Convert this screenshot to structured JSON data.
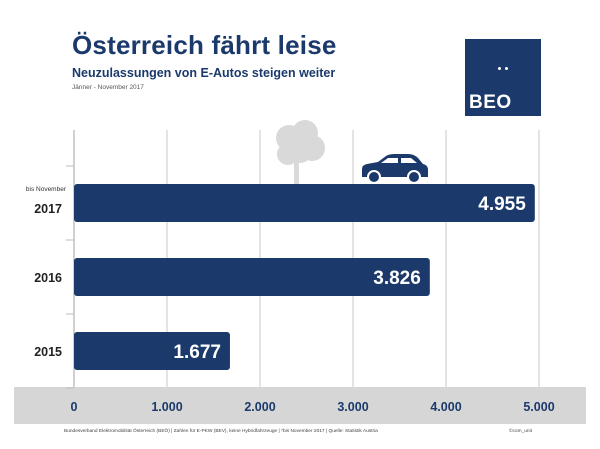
{
  "header": {
    "title": "Österreich fährt leise",
    "subtitle": "Neuzulassungen von E-Autos steigen weiter",
    "period": "Jänner - November 2017"
  },
  "logo": {
    "text": "BEO"
  },
  "footer": {
    "note": "Bundesverband Elektromobilität Österreich (BEÖ) | Zahlen für E-PKW (BEV), keine Hybridfahrzeuge | *bis November 2017 | Quelle: Statistik Austria",
    "credit": "©com_unit"
  },
  "colors": {
    "bar": "#1b3a6b",
    "axis_band": "#d6d6d6",
    "grid": "#d8d8d8",
    "tree": "#d9d9d9"
  },
  "icons": [
    "tree-icon",
    "car-icon"
  ],
  "chart_data": {
    "type": "bar",
    "orientation": "horizontal",
    "title": "Österreich fährt leise",
    "subtitle": "Neuzulassungen von E-Autos steigen weiter",
    "categories": [
      "2017",
      "2016",
      "2015"
    ],
    "category_notes": [
      "bis November",
      "",
      ""
    ],
    "values": [
      4955,
      3826,
      1677
    ],
    "value_labels": [
      "4.955",
      "3.826",
      "1.677"
    ],
    "xlim": [
      0,
      5000
    ],
    "xticks": [
      0,
      1000,
      2000,
      3000,
      4000,
      5000
    ],
    "xtick_labels": [
      "0",
      "1.000",
      "2.000",
      "3.000",
      "4.000",
      "5.000"
    ],
    "xlabel": "",
    "ylabel": "",
    "grid": true,
    "legend": "none"
  }
}
